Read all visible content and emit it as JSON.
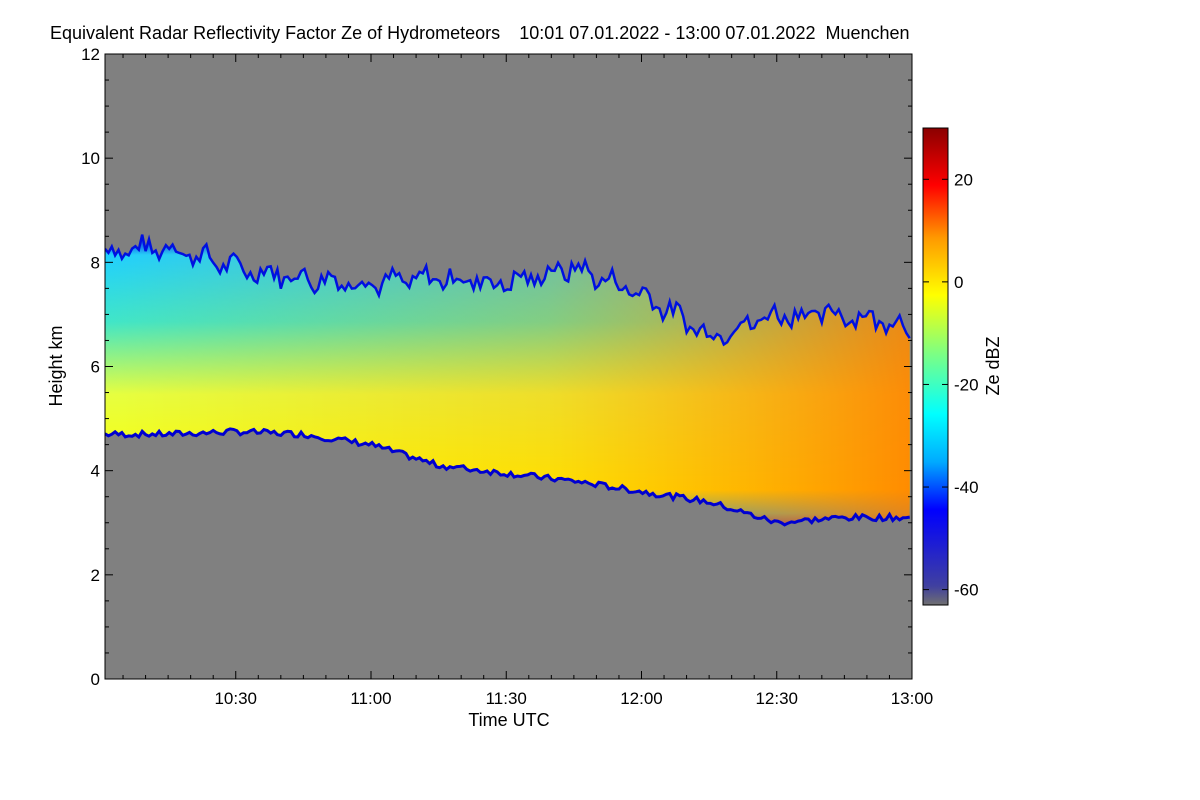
{
  "chart_data": {
    "type": "heatmap",
    "title": "Equivalent Radar Reflectivity Factor Ze of Hydrometeors",
    "time_range": "10:01 07.01.2022 - 13:00 07.01.2022",
    "location": "Muenchen",
    "xlabel": "Time UTC",
    "ylabel": "Height km",
    "colorbar_label": "Ze dBZ",
    "xlim_minutes": [
      601,
      780
    ],
    "ylim": [
      0,
      12
    ],
    "x_ticks": [
      {
        "label": "10:30",
        "value": 630
      },
      {
        "label": "11:00",
        "value": 660
      },
      {
        "label": "11:30",
        "value": 690
      },
      {
        "label": "12:00",
        "value": 720
      },
      {
        "label": "12:30",
        "value": 750
      },
      {
        "label": "13:00",
        "value": 780
      }
    ],
    "y_ticks": [
      0,
      2,
      4,
      6,
      8,
      10,
      12
    ],
    "colorbar_ticks": [
      20,
      0,
      -20,
      -40,
      -60
    ],
    "colorbar_range": [
      -63,
      30
    ],
    "background_color": "#808080",
    "cloud_band": [
      {
        "t": 601,
        "base": 4.7,
        "top": 8.2,
        "core": -10
      },
      {
        "t": 615,
        "base": 4.7,
        "top": 8.3,
        "core": -12
      },
      {
        "t": 630,
        "base": 4.75,
        "top": 7.9,
        "core": -12
      },
      {
        "t": 645,
        "base": 4.7,
        "top": 7.7,
        "core": -12
      },
      {
        "t": 660,
        "base": 4.5,
        "top": 7.6,
        "core": -8
      },
      {
        "t": 675,
        "base": 4.1,
        "top": 7.7,
        "core": -6
      },
      {
        "t": 690,
        "base": 3.95,
        "top": 7.6,
        "core": -4
      },
      {
        "t": 705,
        "base": 3.8,
        "top": 7.9,
        "core": -6
      },
      {
        "t": 720,
        "base": 3.6,
        "top": 7.4,
        "core": -6
      },
      {
        "t": 735,
        "base": 3.4,
        "top": 6.6,
        "core": 0
      },
      {
        "t": 750,
        "base": 3.0,
        "top": 7.0,
        "core": 4
      },
      {
        "t": 765,
        "base": 3.1,
        "top": 7.0,
        "core": 8
      },
      {
        "t": 780,
        "base": 3.1,
        "top": 6.8,
        "core": 10
      }
    ]
  }
}
